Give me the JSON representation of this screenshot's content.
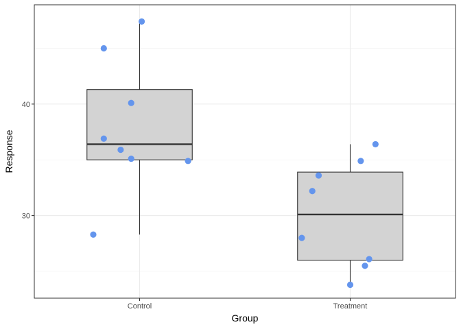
{
  "chart_data": {
    "type": "boxplot",
    "title": "",
    "xlabel": "Group",
    "ylabel": "Response",
    "categories": [
      "Control",
      "Treatment"
    ],
    "ylim": [
      22.6,
      48.9
    ],
    "y_ticks": [
      30,
      40
    ],
    "y_minor_ticks": [
      25,
      35,
      45
    ],
    "grid": true,
    "box_fill": "#d3d3d3",
    "point_color": "#6495ed",
    "boxes": [
      {
        "category": "Control",
        "whisker_low": 28.3,
        "q1": 35.0,
        "median": 36.4,
        "q3": 41.3,
        "whisker_high": 47.4
      },
      {
        "category": "Treatment",
        "whisker_low": 23.8,
        "q1": 26.0,
        "median": 30.1,
        "q3": 33.9,
        "whisker_high": 36.4
      }
    ],
    "points": [
      {
        "category": "Control",
        "jitter": -0.22,
        "y": 28.3
      },
      {
        "category": "Control",
        "jitter": -0.17,
        "y": 45.0
      },
      {
        "category": "Control",
        "jitter": -0.17,
        "y": 36.9
      },
      {
        "category": "Control",
        "jitter": -0.09,
        "y": 35.9
      },
      {
        "category": "Control",
        "jitter": -0.04,
        "y": 40.1
      },
      {
        "category": "Control",
        "jitter": -0.04,
        "y": 35.1
      },
      {
        "category": "Control",
        "jitter": 0.01,
        "y": 47.4
      },
      {
        "category": "Control",
        "jitter": 0.23,
        "y": 34.9
      },
      {
        "category": "Treatment",
        "jitter": -0.23,
        "y": 28.0
      },
      {
        "category": "Treatment",
        "jitter": -0.18,
        "y": 32.2
      },
      {
        "category": "Treatment",
        "jitter": -0.15,
        "y": 33.6
      },
      {
        "category": "Treatment",
        "jitter": 0.0,
        "y": 23.8
      },
      {
        "category": "Treatment",
        "jitter": 0.05,
        "y": 34.9
      },
      {
        "category": "Treatment",
        "jitter": 0.07,
        "y": 25.5
      },
      {
        "category": "Treatment",
        "jitter": 0.09,
        "y": 26.1
      },
      {
        "category": "Treatment",
        "jitter": 0.12,
        "y": 36.4
      }
    ]
  }
}
